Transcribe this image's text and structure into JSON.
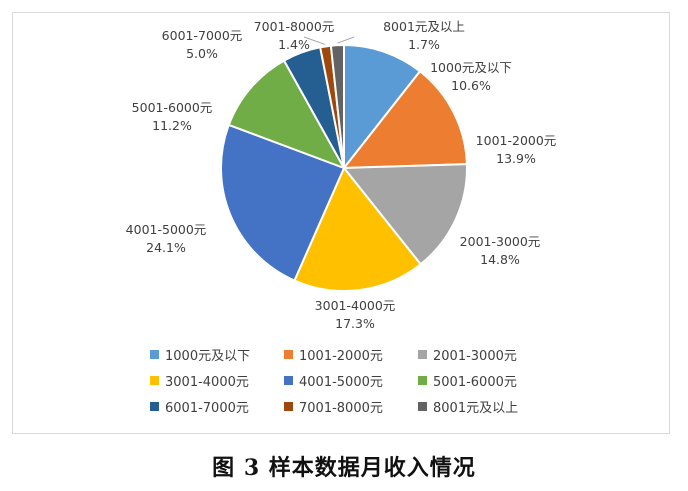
{
  "caption": "图 3 样本数据月收入情况",
  "chart_data": {
    "type": "pie",
    "title": "",
    "legend_position": "bottom",
    "slices": [
      {
        "label": "1000元及以下",
        "value": 10.6,
        "value_label": "10.6%",
        "color": "#5B9BD5"
      },
      {
        "label": "1001-2000元",
        "value": 13.9,
        "value_label": "13.9%",
        "color": "#ED7D31"
      },
      {
        "label": "2001-3000元",
        "value": 14.8,
        "value_label": "14.8%",
        "color": "#A5A5A5"
      },
      {
        "label": "3001-4000元",
        "value": 17.3,
        "value_label": "17.3%",
        "color": "#FFC000"
      },
      {
        "label": "4001-5000元",
        "value": 24.1,
        "value_label": "24.1%",
        "color": "#4472C4"
      },
      {
        "label": "5001-6000元",
        "value": 11.2,
        "value_label": "11.2%",
        "color": "#70AD47"
      },
      {
        "label": "6001-7000元",
        "value": 5.0,
        "value_label": "5.0%",
        "color": "#255E91"
      },
      {
        "label": "7001-8000元",
        "value": 1.4,
        "value_label": "1.4%",
        "color": "#9E480E"
      },
      {
        "label": "8001元及以上",
        "value": 1.7,
        "value_label": "1.7%",
        "color": "#636363"
      }
    ]
  }
}
